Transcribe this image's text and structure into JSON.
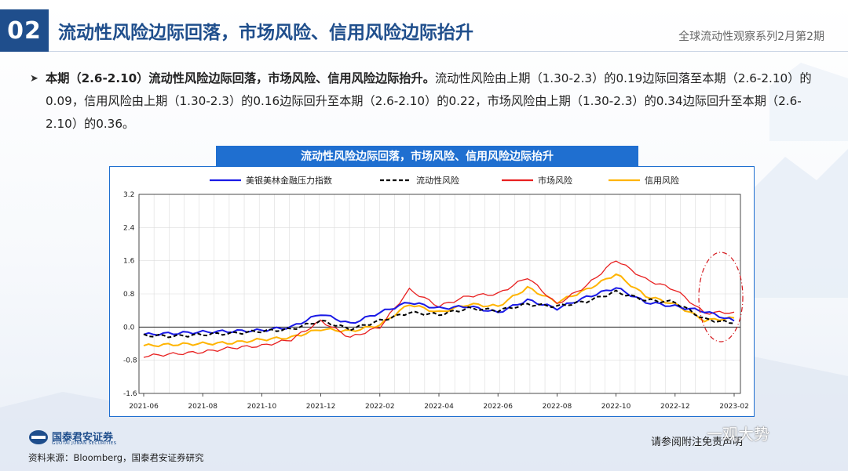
{
  "header": {
    "number": "02",
    "title": "流动性风险边际回落，市场风险、信用风险边际抬升",
    "series": "全球流动性观察系列2月第2期"
  },
  "bullet": {
    "bold": "本期（2.6-2.10）流动性风险边际回落，市场风险、信用风险边际抬升。",
    "rest": "流动性风险由上期（1.30-2.3）的0.19边际回落至本期（2.6-2.10）的0.09，信用风险由上期（1.30-2.3）的0.16边际回升至本期（2.6-2.10）的0.22，市场风险由上期（1.30-2.3）的0.34边际回升至本期（2.6-2.10）的0.36。"
  },
  "chart_title": "流动性风险边际回落，市场风险、信用风险边际抬升",
  "colors": {
    "brand": "#1f4e8c",
    "title_bar": "#1f6fd0",
    "stress": "#1a1ae6",
    "liquidity": "#000000",
    "market": "#e82020",
    "credit": "#ffb400",
    "highlight": "#d4161b"
  },
  "chart_data": {
    "type": "line",
    "title": "流动性风险边际回落，市场风险、信用风险边际抬升",
    "ylim": [
      -1.6,
      3.2
    ],
    "yticks": [
      "3.2",
      "2.4",
      "1.6",
      "0.8",
      "0.0",
      "-0.8",
      "-1.6"
    ],
    "xticks": [
      "2021-06",
      "2021-08",
      "2021-10",
      "2021-12",
      "2022-02",
      "2022-04",
      "2022-06",
      "2022-08",
      "2022-10",
      "2022-12",
      "2023-02"
    ],
    "x": [
      "2021-06",
      "2021-07",
      "2021-08",
      "2021-09",
      "2021-10",
      "2021-11",
      "2021-12",
      "2022-01",
      "2022-02",
      "2022-03",
      "2022-04",
      "2022-05",
      "2022-06",
      "2022-07",
      "2022-08",
      "2022-09",
      "2022-10",
      "2022-11",
      "2022-12",
      "2023-01",
      "2023-02"
    ],
    "grid": true,
    "legend_position": "top",
    "series": [
      {
        "name": "美银美林金融压力指数",
        "style": "solid",
        "values": [
          -0.18,
          -0.15,
          -0.12,
          -0.1,
          -0.08,
          0.0,
          0.32,
          0.08,
          0.35,
          0.6,
          0.45,
          0.5,
          0.35,
          0.65,
          0.45,
          0.72,
          0.95,
          0.6,
          0.5,
          0.38,
          0.15
        ]
      },
      {
        "name": "流动性风险",
        "style": "dashed",
        "values": [
          -0.2,
          -0.22,
          -0.18,
          -0.15,
          -0.1,
          -0.05,
          0.15,
          -0.05,
          0.15,
          0.35,
          0.3,
          0.45,
          0.4,
          0.55,
          0.5,
          0.62,
          0.85,
          0.65,
          0.6,
          0.19,
          0.09
        ]
      },
      {
        "name": "市场风险",
        "style": "solid",
        "values": [
          -0.7,
          -0.65,
          -0.6,
          -0.5,
          -0.45,
          -0.3,
          0.15,
          -0.25,
          0.0,
          0.9,
          0.5,
          0.75,
          0.8,
          1.2,
          0.55,
          1.0,
          1.62,
          1.15,
          0.9,
          0.34,
          0.36
        ]
      },
      {
        "name": "信用风险",
        "style": "solid",
        "values": [
          -0.45,
          -0.42,
          -0.4,
          -0.38,
          -0.3,
          -0.25,
          -0.05,
          -0.1,
          0.05,
          0.55,
          0.35,
          0.55,
          0.5,
          0.95,
          0.6,
          0.9,
          1.28,
          0.75,
          0.55,
          0.16,
          0.22
        ]
      }
    ]
  },
  "footer": {
    "logo_cn": "国泰君安证券",
    "logo_en": "GUOTAI JUNAN SECURITIES",
    "source": "资料来源：Bloomberg，国泰君安证券研究",
    "disclaimer": "请参阅附注免责声明",
    "watermark": "一观大势"
  }
}
